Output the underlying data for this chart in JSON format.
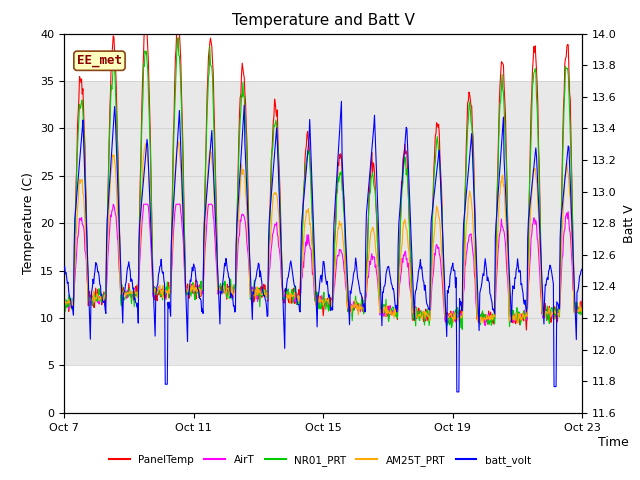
{
  "title": "Temperature and Batt V",
  "xlabel": "Time",
  "ylabel_left": "Temperature (C)",
  "ylabel_right": "Batt V",
  "annotation": "EE_met",
  "ylim_left": [
    0,
    40
  ],
  "ylim_right": [
    11.6,
    14.0
  ],
  "yticks_left": [
    0,
    5,
    10,
    15,
    20,
    25,
    30,
    35,
    40
  ],
  "yticks_right": [
    11.6,
    11.8,
    12.0,
    12.2,
    12.4,
    12.6,
    12.8,
    13.0,
    13.2,
    13.4,
    13.6,
    13.8,
    14.0
  ],
  "xtick_labels": [
    "Oct 7",
    "Oct 11",
    "Oct 15",
    "Oct 19",
    "Oct 23"
  ],
  "xtick_positions": [
    0,
    4,
    8,
    12,
    16
  ],
  "series_colors": {
    "PanelTemp": "#ff0000",
    "AirT": "#ff00ff",
    "NR01_PRT": "#00cc00",
    "AM25T_PRT": "#ffaa00",
    "batt_volt": "#0000ff"
  },
  "legend_entries": [
    "PanelTemp",
    "AirT",
    "NR01_PRT",
    "AM25T_PRT",
    "batt_volt"
  ],
  "bg_shading": {
    "ymin": 5,
    "ymax": 35,
    "color": "#e8e8e8"
  },
  "title_fontsize": 11,
  "annotation_fontsize": 9,
  "axis_fontsize": 9,
  "tick_fontsize": 8,
  "figwidth": 6.4,
  "figheight": 4.8,
  "dpi": 100
}
